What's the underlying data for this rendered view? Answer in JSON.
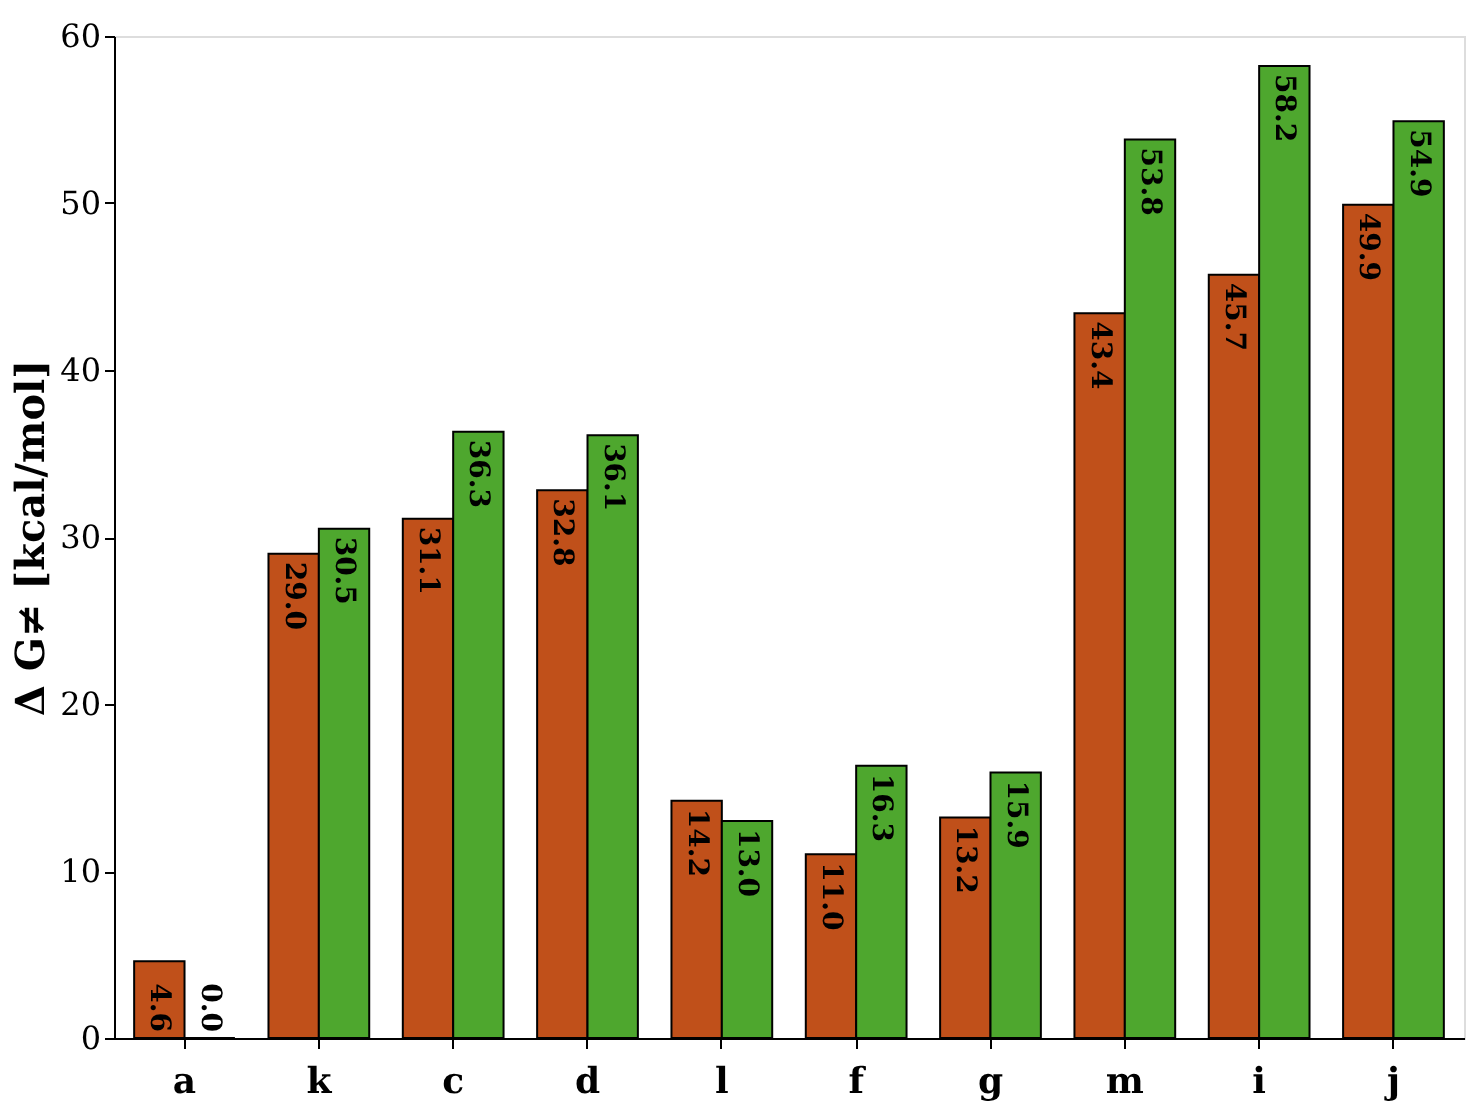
{
  "chart_data": {
    "type": "bar",
    "ylabel": "Δ G≠ [kcal/mol]",
    "categories": [
      "a",
      "k",
      "c",
      "d",
      "l",
      "f",
      "g",
      "m",
      "i",
      "j"
    ],
    "series": [
      {
        "color": "#c0501a",
        "values": [
          4.6,
          29.0,
          31.1,
          32.8,
          14.2,
          11.0,
          13.2,
          43.4,
          45.7,
          49.9
        ],
        "value_labels": [
          "4.6",
          "29.0",
          "31.1",
          "32.8",
          "14.2",
          "11.0",
          "13.2",
          "43.4",
          "45.7",
          "49.9"
        ]
      },
      {
        "color": "#4ea72e",
        "values": [
          0.0,
          30.5,
          36.3,
          36.1,
          13.0,
          16.3,
          15.9,
          53.8,
          58.2,
          54.9
        ],
        "value_labels": [
          "0.0",
          "30.5",
          "36.3",
          "36.1",
          "13.0",
          "16.3",
          "15.9",
          "53.8",
          "58.2",
          "54.9"
        ]
      }
    ],
    "ylim": [
      0,
      60
    ],
    "yticks": [
      0,
      10,
      20,
      30,
      40,
      50,
      60
    ],
    "grid": false,
    "legend": false
  }
}
